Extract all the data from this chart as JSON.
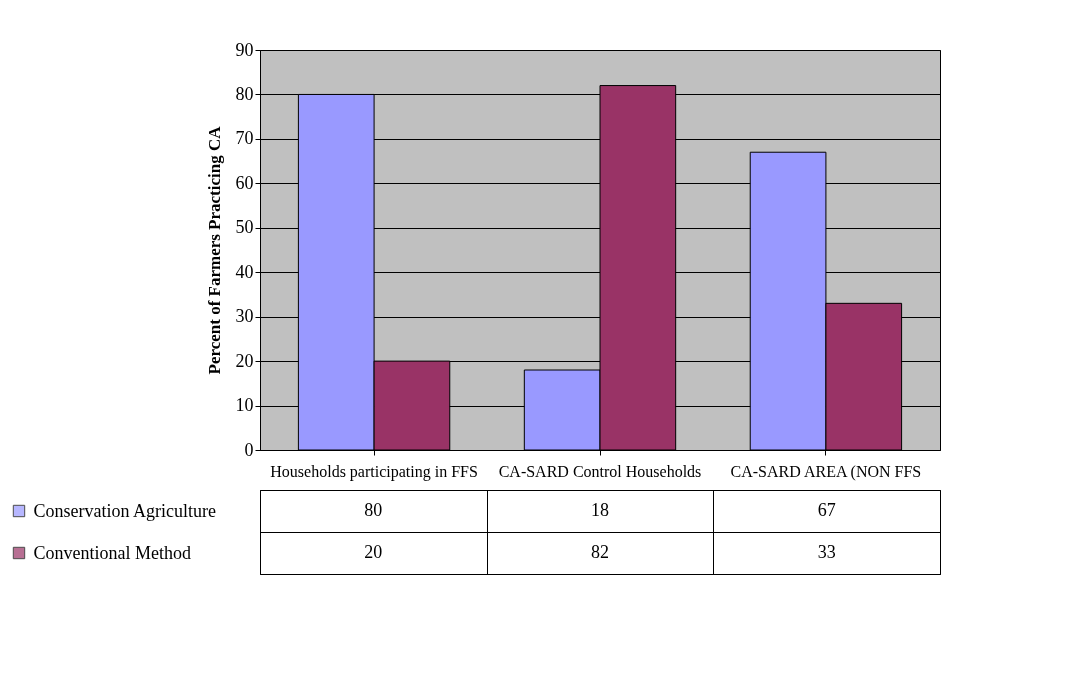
{
  "chart_data": {
    "type": "bar",
    "ylabel": "Percent of Farmers Practicing CA",
    "categories": [
      "Households participating in FFS",
      "CA-SARD Control Households",
      "CA-SARD AREA (NON FFS"
    ],
    "series": [
      {
        "name": "Conservation Agriculture",
        "color": "#9999ff",
        "values": [
          80,
          18,
          67
        ]
      },
      {
        "name": "Conventional Method",
        "color": "#993366",
        "values": [
          20,
          82,
          33
        ]
      }
    ],
    "ylim": [
      0,
      90
    ],
    "yticks": [
      0,
      10,
      20,
      30,
      40,
      50,
      60,
      70,
      80,
      90
    ],
    "grid": "y",
    "legend": "bottom left",
    "data_labels": true
  }
}
